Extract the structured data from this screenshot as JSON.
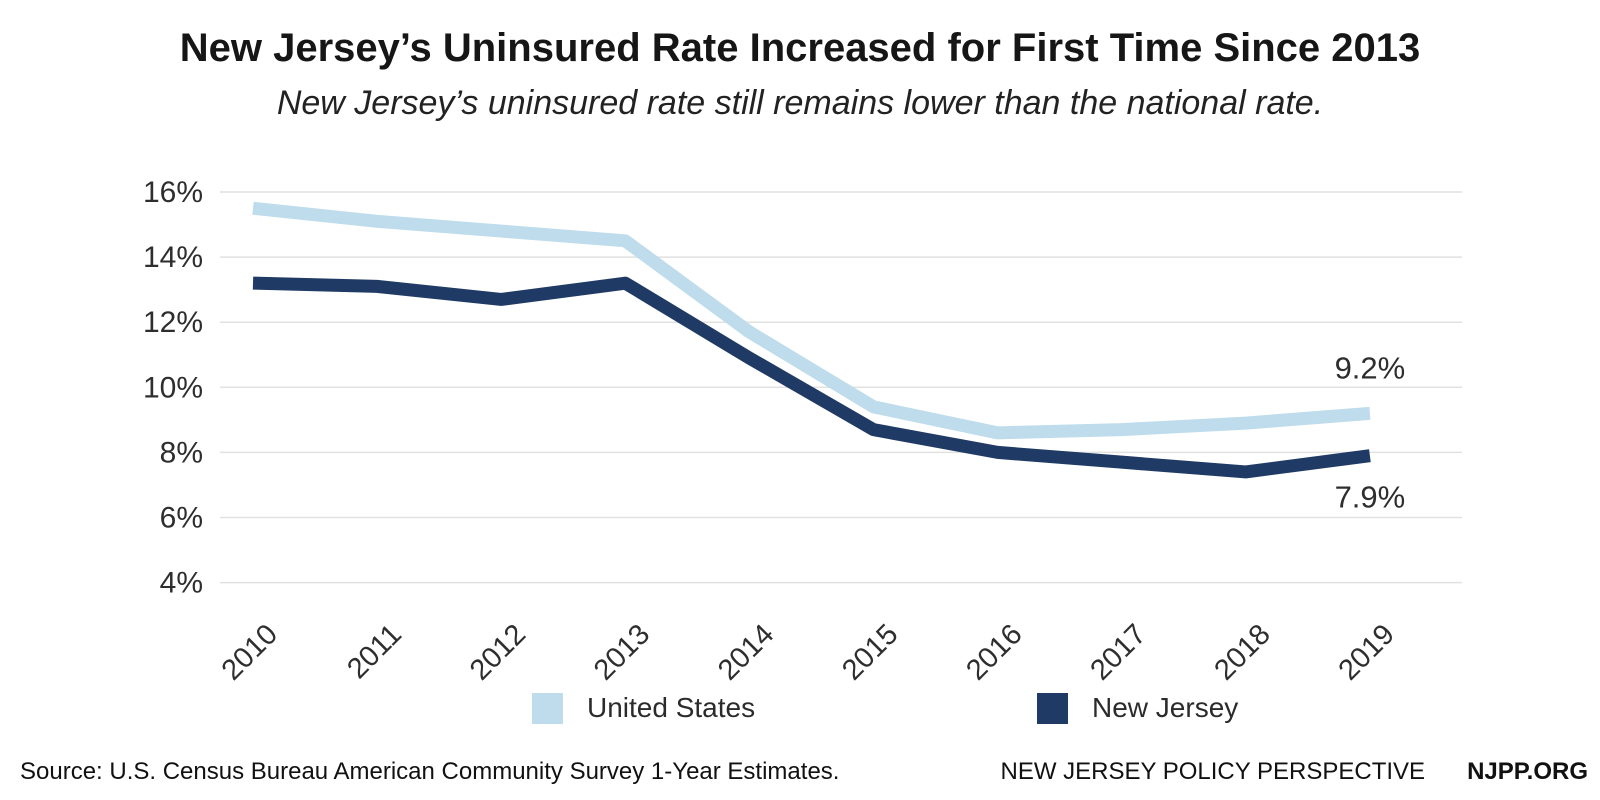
{
  "header": {
    "title": "New Jersey’s Uninsured Rate Increased for First Time Since 2013",
    "subtitle": "New Jersey’s uninsured rate still remains lower than the national rate."
  },
  "chart_data": {
    "type": "line",
    "x": [
      "2010",
      "2011",
      "2012",
      "2013",
      "2014",
      "2015",
      "2016",
      "2017",
      "2018",
      "2019"
    ],
    "series": [
      {
        "name": "United States",
        "color": "#BFDCEC",
        "values": [
          15.5,
          15.1,
          14.8,
          14.5,
          11.7,
          9.4,
          8.6,
          8.7,
          8.9,
          9.2
        ]
      },
      {
        "name": "New Jersey",
        "color": "#1F3A64",
        "values": [
          13.2,
          13.1,
          12.7,
          13.2,
          10.9,
          8.7,
          8.0,
          7.7,
          7.4,
          7.9
        ]
      }
    ],
    "title": "New Jersey’s Uninsured Rate Increased for First Time Since 2013",
    "xlabel": "",
    "ylabel": "",
    "ylim": [
      4,
      16
    ],
    "yticks": [
      4,
      6,
      8,
      10,
      12,
      14,
      16
    ],
    "ytick_suffix": "%",
    "grid": true,
    "grid_color": "#e1e1e1",
    "axis_text_color": "#2e2e2e",
    "legend_position": "bottom",
    "annotations": [
      {
        "text": "9.2%",
        "year": "2019",
        "series": "United States",
        "position": "above"
      },
      {
        "text": "7.9%",
        "year": "2019",
        "series": "New Jersey",
        "position": "below"
      }
    ]
  },
  "footer": {
    "source": "Source: U.S. Census Bureau American Community Survey 1-Year Estimates.",
    "org": "NEW JERSEY POLICY PERSPECTIVE",
    "site": "NJPP.ORG"
  }
}
